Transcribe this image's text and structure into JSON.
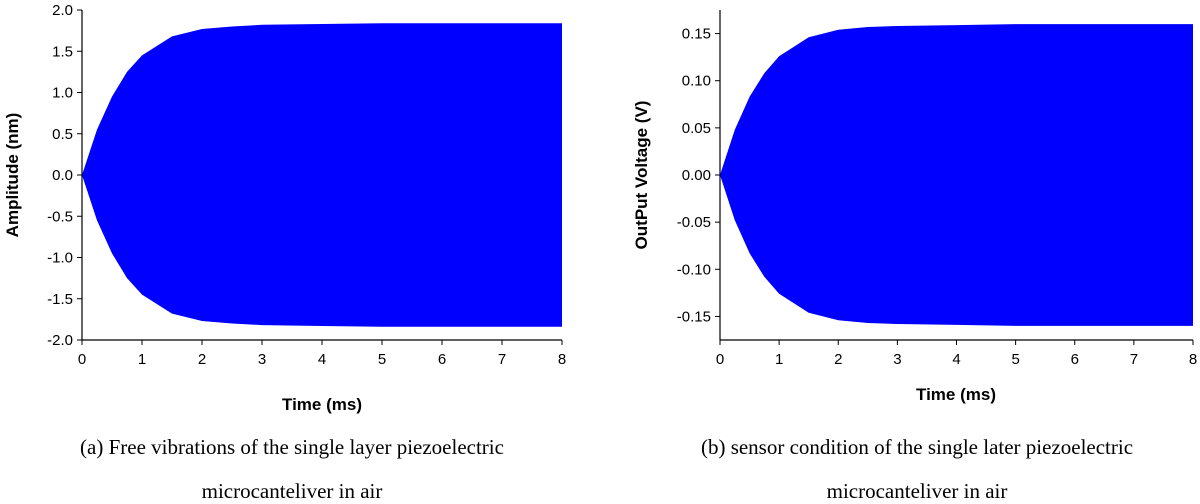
{
  "chart_data": [
    {
      "type": "area",
      "xlabel": "Time (ms)",
      "ylabel": "Amplitude (nm)",
      "xlim": [
        0,
        8
      ],
      "ylim": [
        -2.0,
        2.0
      ],
      "x_ticks": [
        "0",
        "1",
        "2",
        "3",
        "4",
        "5",
        "6",
        "7",
        "8"
      ],
      "y_ticks": [
        "2.0",
        "1.5",
        "1.0",
        "0.5",
        "0.0",
        "-0.5",
        "-1.0",
        "-1.5",
        "-2.0"
      ],
      "envelope": {
        "x": [
          0,
          0.25,
          0.5,
          0.75,
          1,
          1.5,
          2,
          2.5,
          3,
          4,
          5,
          6,
          7,
          8
        ],
        "upper": [
          0,
          0.55,
          0.95,
          1.25,
          1.45,
          1.68,
          1.77,
          1.8,
          1.82,
          1.83,
          1.84,
          1.84,
          1.84,
          1.84
        ],
        "lower": [
          0,
          -0.55,
          -0.95,
          -1.25,
          -1.45,
          -1.68,
          -1.77,
          -1.8,
          -1.82,
          -1.83,
          -1.84,
          -1.84,
          -1.84,
          -1.84
        ]
      },
      "color": "#0000ff",
      "caption_line1": "(a) Free vibrations of the single layer piezoelectric",
      "caption_line2": "microcanteliver in air"
    },
    {
      "type": "area",
      "xlabel": "Time (ms)",
      "ylabel": "OutPut Voltage (V)",
      "xlim": [
        0,
        8
      ],
      "ylim": [
        -0.175,
        0.175
      ],
      "x_ticks": [
        "0",
        "1",
        "2",
        "3",
        "4",
        "5",
        "6",
        "7",
        "8"
      ],
      "y_ticks": [
        "0.15",
        "0.10",
        "0.05",
        "0.00",
        "-0.05",
        "-0.10",
        "-0.15"
      ],
      "envelope": {
        "x": [
          0,
          0.25,
          0.5,
          0.75,
          1,
          1.5,
          2,
          2.5,
          3,
          4,
          5,
          6,
          7,
          8
        ],
        "upper": [
          0,
          0.048,
          0.083,
          0.108,
          0.126,
          0.146,
          0.154,
          0.157,
          0.158,
          0.159,
          0.16,
          0.16,
          0.16,
          0.16
        ],
        "lower": [
          0,
          -0.048,
          -0.083,
          -0.108,
          -0.126,
          -0.146,
          -0.154,
          -0.157,
          -0.158,
          -0.159,
          -0.16,
          -0.16,
          -0.16,
          -0.16
        ]
      },
      "color": "#0000ff",
      "caption_line1": "(b) sensor condition of the single later piezoelectric",
      "caption_line2": "microcanteliver in air"
    }
  ]
}
